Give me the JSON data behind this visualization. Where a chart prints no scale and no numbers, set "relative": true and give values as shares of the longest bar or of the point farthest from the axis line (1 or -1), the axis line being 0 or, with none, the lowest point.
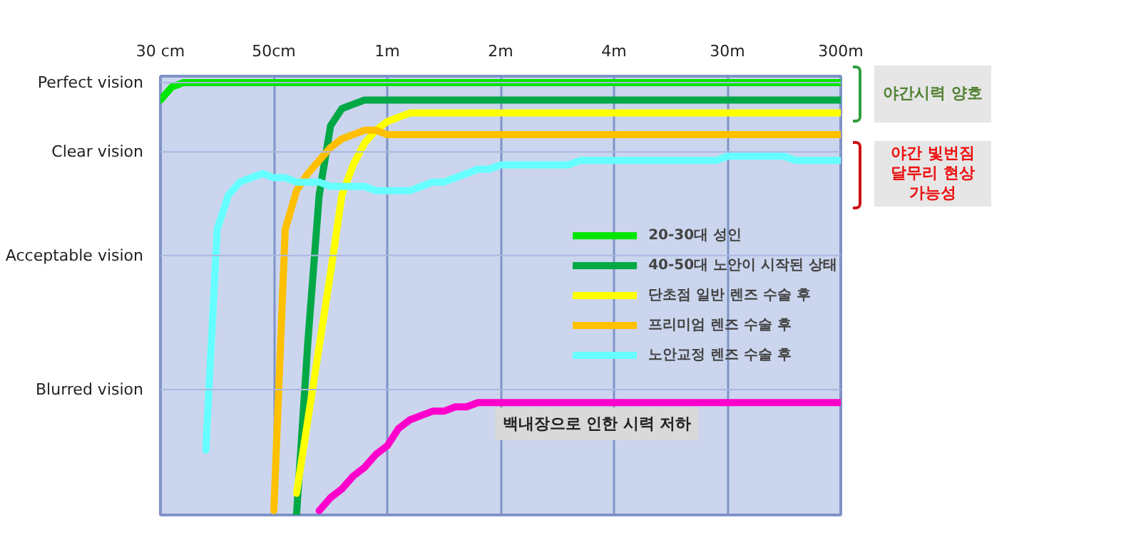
{
  "chart_data": {
    "type": "line",
    "relative": true,
    "categories": [
      "30 cm",
      null,
      null,
      null,
      null,
      null,
      null,
      null,
      null,
      null,
      "50cm",
      null,
      null,
      null,
      null,
      null,
      null,
      null,
      null,
      null,
      "1m",
      null,
      null,
      null,
      null,
      null,
      null,
      null,
      null,
      null,
      "2m",
      null,
      null,
      null,
      null,
      null,
      null,
      null,
      null,
      null,
      "4m",
      null,
      null,
      null,
      null,
      null,
      null,
      null,
      null,
      null,
      "30m",
      null,
      null,
      null,
      null,
      null,
      null,
      null,
      null,
      null,
      "300m"
    ],
    "grid": "x",
    "legend": "right",
    "line_style": "solid",
    "ref_lines": [
      {
        "axis": "y",
        "value": 0.29,
        "label": "Blurred vision"
      },
      {
        "axis": "y",
        "value": 0.6,
        "label": "Acceptable vision"
      },
      {
        "axis": "y",
        "value": 0.84,
        "label": "Clear vision"
      },
      {
        "axis": "y",
        "value": 1,
        "label": "Perfect vision"
      }
    ],
    "series": [
      {
        "name": "20-30대 성인",
        "color": "#00e600",
        "values": [
          0.96,
          0.99,
          1,
          1,
          1,
          1,
          1,
          1,
          1,
          1,
          1,
          1,
          1,
          1,
          1,
          1,
          1,
          1,
          1,
          1,
          1,
          1,
          1,
          1,
          1,
          1,
          1,
          1,
          1,
          1,
          1,
          1,
          1,
          1,
          1,
          1,
          1,
          1,
          1,
          1,
          1,
          1,
          1,
          1,
          1,
          1,
          1,
          1,
          1,
          1,
          1,
          1,
          1,
          1,
          1,
          1,
          1,
          1,
          1,
          1,
          1
        ]
      },
      {
        "name": "40-50대 노안이 시작된 상태",
        "color": "#00a846",
        "values": [
          null,
          null,
          null,
          null,
          null,
          null,
          null,
          null,
          null,
          null,
          null,
          null,
          0,
          0.4,
          0.74,
          0.9,
          0.94,
          0.95,
          0.96,
          0.96,
          0.96,
          0.96,
          0.96,
          0.96,
          0.96,
          0.96,
          0.96,
          0.96,
          0.96,
          0.96,
          0.96,
          0.96,
          0.96,
          0.96,
          0.96,
          0.96,
          0.96,
          0.96,
          0.96,
          0.96,
          0.96,
          0.96,
          0.96,
          0.96,
          0.96,
          0.96,
          0.96,
          0.96,
          0.96,
          0.96,
          0.96,
          0.96,
          0.96,
          0.96,
          0.96,
          0.96,
          0.96,
          0.96,
          0.96,
          0.96,
          0.96
        ]
      },
      {
        "name": "단초점 일반 렌즈 수술 후",
        "color": "#ffff00",
        "values": [
          null,
          null,
          null,
          null,
          null,
          null,
          null,
          null,
          null,
          null,
          null,
          null,
          0.05,
          0.22,
          0.39,
          0.56,
          0.74,
          0.81,
          0.86,
          0.89,
          0.91,
          0.92,
          0.93,
          0.93,
          0.93,
          0.93,
          0.93,
          0.93,
          0.93,
          0.93,
          0.93,
          0.93,
          0.93,
          0.93,
          0.93,
          0.93,
          0.93,
          0.93,
          0.93,
          0.93,
          0.93,
          0.93,
          0.93,
          0.93,
          0.93,
          0.93,
          0.93,
          0.93,
          0.93,
          0.93,
          0.93,
          0.93,
          0.93,
          0.93,
          0.93,
          0.93,
          0.93,
          0.93,
          0.93,
          0.93,
          0.93
        ]
      },
      {
        "name": "프리미엄 렌즈 수술 후",
        "color": "#ffc000",
        "values": [
          null,
          null,
          null,
          null,
          null,
          null,
          null,
          null,
          null,
          null,
          0.01,
          0.66,
          0.75,
          0.79,
          0.82,
          0.85,
          0.87,
          0.88,
          0.89,
          0.89,
          0.88,
          0.88,
          0.88,
          0.88,
          0.88,
          0.88,
          0.88,
          0.88,
          0.88,
          0.88,
          0.88,
          0.88,
          0.88,
          0.88,
          0.88,
          0.88,
          0.88,
          0.88,
          0.88,
          0.88,
          0.88,
          0.88,
          0.88,
          0.88,
          0.88,
          0.88,
          0.88,
          0.88,
          0.88,
          0.88,
          0.88,
          0.88,
          0.88,
          0.88,
          0.88,
          0.88,
          0.88,
          0.88,
          0.88,
          0.88,
          0.88
        ]
      },
      {
        "name": "노안교정 렌즈 수술 후",
        "color": "#66ffff",
        "values": [
          null,
          null,
          null,
          null,
          0.15,
          0.66,
          0.74,
          0.77,
          0.78,
          0.79,
          0.78,
          0.78,
          0.77,
          0.77,
          0.77,
          0.76,
          0.76,
          0.76,
          0.76,
          0.75,
          0.75,
          0.75,
          0.75,
          0.76,
          0.77,
          0.77,
          0.78,
          0.79,
          0.8,
          0.8,
          0.81,
          0.81,
          0.81,
          0.81,
          0.81,
          0.81,
          0.81,
          0.82,
          0.82,
          0.82,
          0.82,
          0.82,
          0.82,
          0.82,
          0.82,
          0.82,
          0.82,
          0.82,
          0.82,
          0.82,
          0.83,
          0.83,
          0.83,
          0.83,
          0.83,
          0.83,
          0.82,
          0.82,
          0.82,
          0.82,
          0.82
        ]
      },
      {
        "color": "#ff00cc",
        "values": [
          null,
          null,
          null,
          null,
          null,
          null,
          null,
          null,
          null,
          null,
          null,
          null,
          null,
          null,
          0.01,
          0.04,
          0.06,
          0.09,
          0.11,
          0.14,
          0.16,
          0.2,
          0.22,
          0.23,
          0.24,
          0.24,
          0.25,
          0.25,
          0.26,
          0.26,
          0.26,
          0.26,
          0.26,
          0.26,
          0.26,
          0.26,
          0.26,
          0.26,
          0.26,
          0.26,
          0.26,
          0.26,
          0.26,
          0.26,
          0.26,
          0.26,
          0.26,
          0.26,
          0.26,
          0.26,
          0.26,
          0.26,
          0.26,
          0.26,
          0.26,
          0.26,
          0.26,
          0.26,
          0.26,
          0.26,
          0.26
        ]
      }
    ],
    "annotations": [
      "백내장으로 인한 시력 저하",
      "야간시력 양호",
      "야간 빛번짐\n달무리 현상\n가능성"
    ]
  }
}
